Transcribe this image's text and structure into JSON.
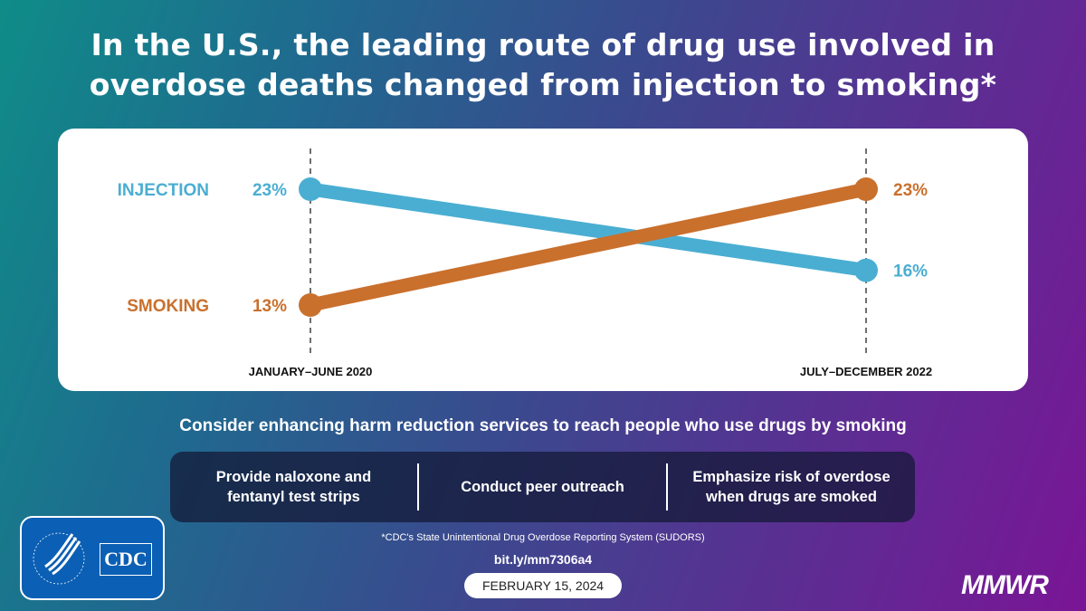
{
  "title_lines": [
    "In the U.S., the leading route of drug use involved in",
    "overdose deaths changed from injection to smoking*"
  ],
  "chart_data": {
    "type": "line",
    "categories": [
      "JANUARY–JUNE 2020",
      "JULY–DECEMBER 2022"
    ],
    "series": [
      {
        "name": "INJECTION",
        "values": [
          23,
          16
        ],
        "labels": [
          "23%",
          "16%"
        ],
        "color": "#4aaed2"
      },
      {
        "name": "SMOKING",
        "values": [
          13,
          23
        ],
        "labels": [
          "13%",
          "23%"
        ],
        "color": "#c9702d"
      }
    ],
    "grid": false
  },
  "subtitle": "Consider enhancing harm reduction services to reach people who use drugs by smoking",
  "actions": [
    [
      "Provide naloxone and",
      "fentanyl test strips"
    ],
    [
      "Conduct peer outreach"
    ],
    [
      "Emphasize risk of overdose",
      "when drugs are smoked"
    ]
  ],
  "source": "*CDC's State Unintentional Drug Overdose Reporting System (SUDORS)",
  "link": "bit.ly/mm7306a4",
  "date": "FEBRUARY 15, 2024",
  "logo": {
    "text": "CDC",
    "seal": "DEPARTMENT OF HEALTH & HUMAN SERVICES USA"
  },
  "brand": "MMWR"
}
